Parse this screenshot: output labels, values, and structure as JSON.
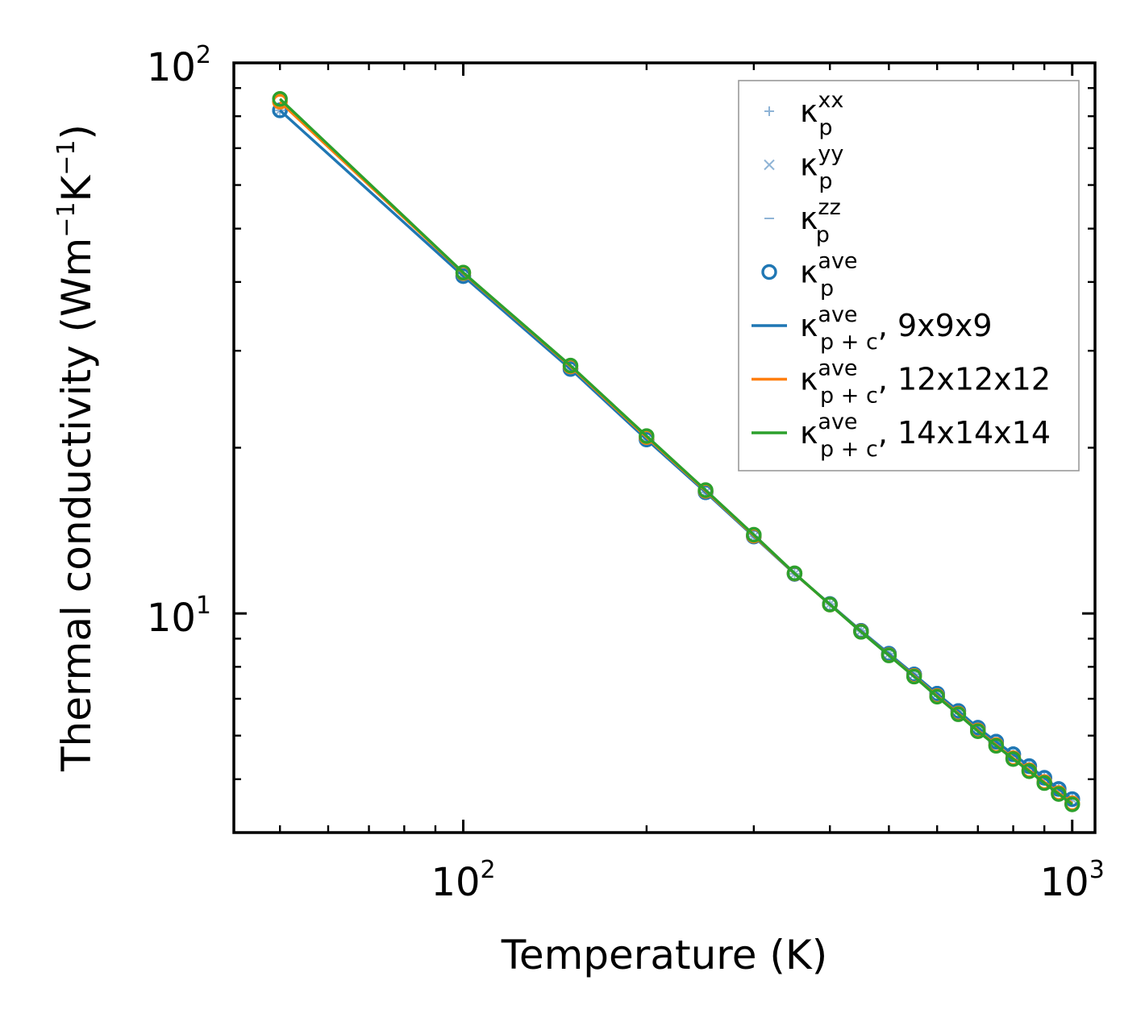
{
  "chart_data": {
    "type": "line",
    "xscale": "log",
    "yscale": "log",
    "xlabel": "Temperature (K)",
    "ylabel": {
      "base": "Thermal conductivity (Wm",
      "exp1": "−1",
      "mid": "K",
      "exp2": "−1",
      "end": ")"
    },
    "xlim": [
      42,
      1090
    ],
    "ylim": [
      4,
      100
    ],
    "x_ticks": [
      {
        "base": "10",
        "exp": "2"
      },
      {
        "base": "10",
        "exp": "3"
      }
    ],
    "y_ticks": [
      {
        "base": "10",
        "exp": "1"
      },
      {
        "base": "10",
        "exp": "2"
      }
    ],
    "x": [
      50,
      100,
      150,
      200,
      250,
      300,
      350,
      400,
      450,
      500,
      550,
      600,
      650,
      700,
      750,
      800,
      850,
      900,
      950,
      1000
    ],
    "series": [
      {
        "name": "κ_p^xx",
        "marker": "plus",
        "color": "#8fb4d6",
        "line": false,
        "values": [
          82,
          41,
          27.8,
          20.7,
          16.6,
          13.8,
          11.8,
          10.4,
          9.3,
          8.45,
          7.75,
          7.15,
          6.65,
          6.2,
          5.85,
          5.55,
          5.28,
          5.03,
          4.8,
          4.6
        ]
      },
      {
        "name": "κ_p^yy",
        "marker": "x",
        "color": "#8fb4d6",
        "line": false,
        "values": [
          82,
          41,
          27.8,
          20.7,
          16.6,
          13.8,
          11.8,
          10.4,
          9.3,
          8.45,
          7.75,
          7.15,
          6.65,
          6.2,
          5.85,
          5.55,
          5.28,
          5.03,
          4.8,
          4.6
        ]
      },
      {
        "name": "κ_p^zz",
        "marker": "dash",
        "color": "#8fb4d6",
        "line": false,
        "values": [
          82,
          41,
          27.8,
          20.7,
          16.6,
          13.8,
          11.8,
          10.4,
          9.3,
          8.45,
          7.75,
          7.15,
          6.65,
          6.2,
          5.85,
          5.55,
          5.28,
          5.03,
          4.8,
          4.6
        ]
      },
      {
        "name": "κ_p^ave",
        "marker": "circle",
        "color": "#1f77b4",
        "line": false,
        "values": [
          82,
          41,
          27.8,
          20.7,
          16.6,
          13.8,
          11.8,
          10.4,
          9.3,
          8.45,
          7.75,
          7.15,
          6.65,
          6.2,
          5.85,
          5.55,
          5.28,
          5.03,
          4.8,
          4.6
        ]
      },
      {
        "name": "κ_p+c^ave, 9x9x9",
        "marker": "circle",
        "color": "#1f77b4",
        "line": true,
        "values": [
          82,
          41,
          27.8,
          20.7,
          16.6,
          13.8,
          11.8,
          10.4,
          9.3,
          8.45,
          7.75,
          7.15,
          6.65,
          6.2,
          5.85,
          5.55,
          5.28,
          5.03,
          4.8,
          4.6
        ]
      },
      {
        "name": "κ_p+c^ave, 12x12x12",
        "marker": "circle",
        "color": "#ff7f0e",
        "line": true,
        "values": [
          85,
          41.5,
          28.1,
          20.9,
          16.7,
          13.85,
          11.82,
          10.38,
          9.27,
          8.4,
          7.7,
          7.08,
          6.58,
          6.13,
          5.77,
          5.46,
          5.19,
          4.94,
          4.72,
          4.52
        ]
      },
      {
        "name": "κ_p+c^ave, 14x14x14",
        "marker": "circle",
        "color": "#2ca02c",
        "line": true,
        "values": [
          86,
          41.6,
          28.2,
          21.0,
          16.75,
          13.9,
          11.83,
          10.38,
          9.26,
          8.39,
          7.68,
          7.06,
          6.56,
          6.11,
          5.75,
          5.44,
          5.17,
          4.92,
          4.7,
          4.5
        ]
      }
    ],
    "legend": {
      "position": "top-right",
      "entries": [
        {
          "marker": "plus",
          "color": "#8fb4d6",
          "sym": "κ",
          "sub": "p",
          "sup": "xx",
          "rest": ""
        },
        {
          "marker": "x",
          "color": "#8fb4d6",
          "sym": "κ",
          "sub": "p",
          "sup": "yy",
          "rest": ""
        },
        {
          "marker": "dash",
          "color": "#8fb4d6",
          "sym": "κ",
          "sub": "p",
          "sup": "zz",
          "rest": ""
        },
        {
          "marker": "circle",
          "color": "#1f77b4",
          "sym": "κ",
          "sub": "p",
          "sup": "ave",
          "rest": ""
        },
        {
          "marker": "line",
          "color": "#1f77b4",
          "sym": "κ",
          "sub": "p + c",
          "sup": "ave",
          "rest": ", 9x9x9"
        },
        {
          "marker": "line",
          "color": "#ff7f0e",
          "sym": "κ",
          "sub": "p + c",
          "sup": "ave",
          "rest": ", 12x12x12"
        },
        {
          "marker": "line",
          "color": "#2ca02c",
          "sym": "κ",
          "sub": "p + c",
          "sup": "ave",
          "rest": ", 14x14x14"
        }
      ]
    }
  }
}
